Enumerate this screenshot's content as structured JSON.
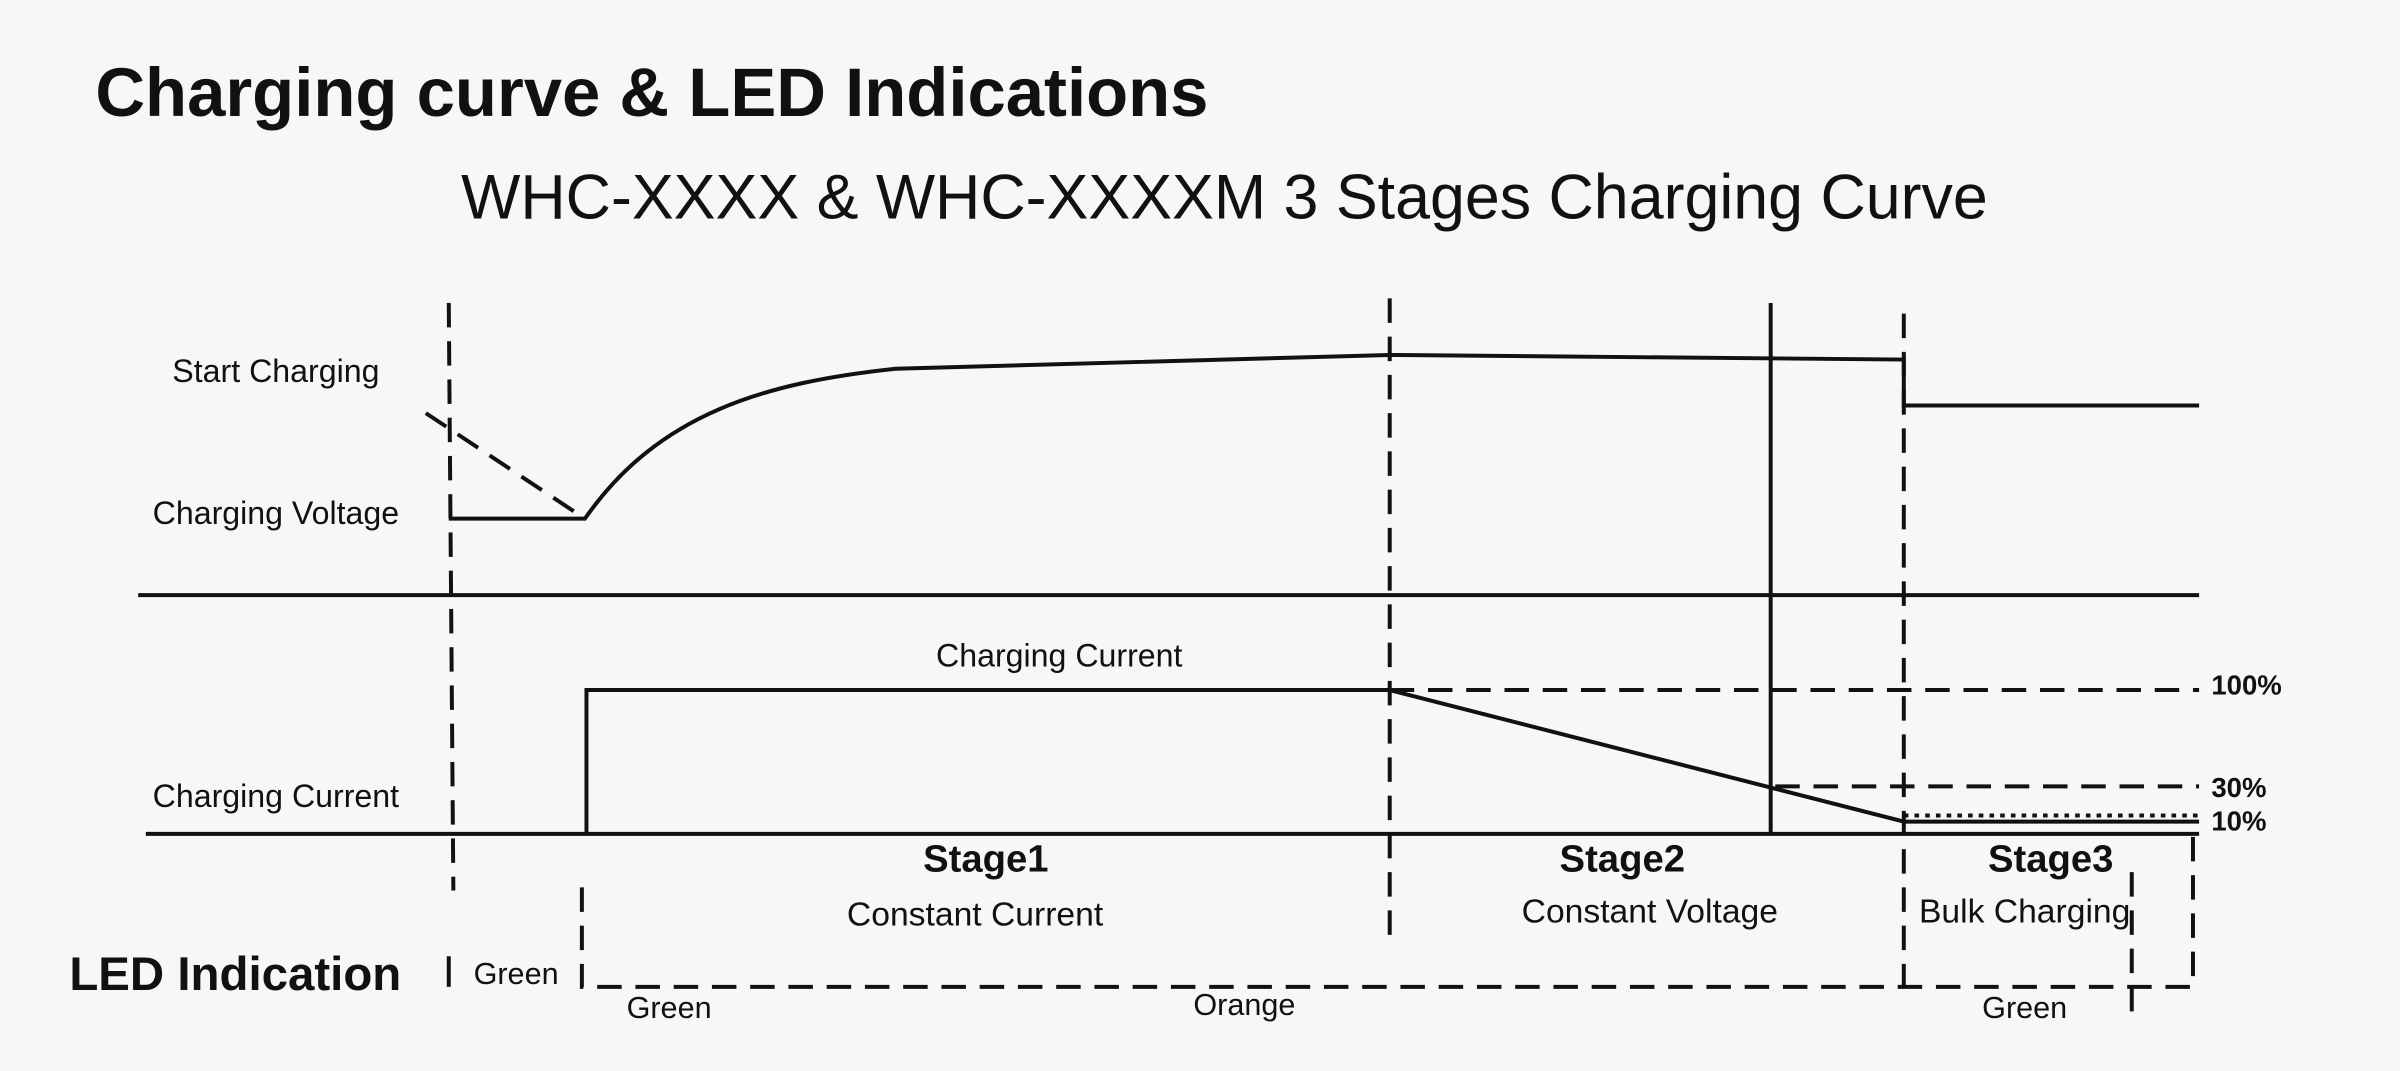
{
  "header": {
    "title": "Charging curve & LED Indications",
    "subtitle": "WHC-XXXX & WHC-XXXXM 3 Stages Charging Curve"
  },
  "voltage_panel": {
    "start_label": "Start Charging",
    "voltage_label": "Charging Voltage"
  },
  "current_panel": {
    "axis_label": "Charging Current",
    "curve_label": "Charging Current",
    "levels": [
      "100%",
      "30%",
      "10%"
    ]
  },
  "stages": [
    {
      "name": "Stage1",
      "mode": "Constant Current"
    },
    {
      "name": "Stage2",
      "mode": "Constant Voltage"
    },
    {
      "name": "Stage3",
      "mode": "Bulk Charging"
    }
  ],
  "led": {
    "heading": "LED Indication",
    "indications": [
      "Green",
      "Green",
      "Orange",
      "Green"
    ]
  }
}
